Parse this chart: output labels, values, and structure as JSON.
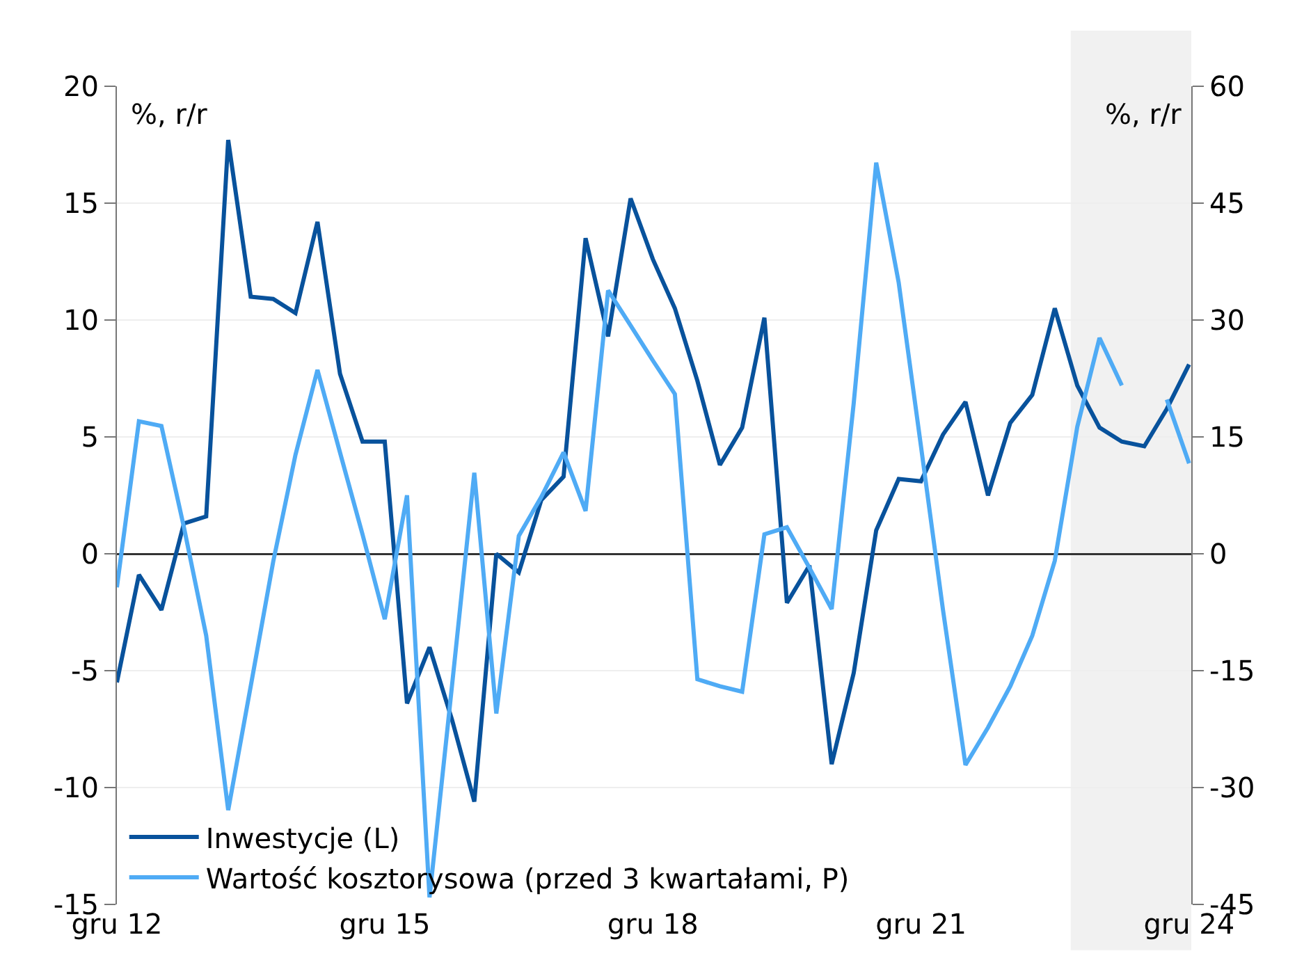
{
  "chart_data": {
    "type": "line",
    "ylabel": "%, r/r",
    "y2label": "%, r/r",
    "x": [
      "2012-12",
      "2013-03",
      "2013-06",
      "2013-09",
      "2013-12",
      "2014-03",
      "2014-06",
      "2014-09",
      "2014-12",
      "2015-03",
      "2015-06",
      "2015-09",
      "2015-12",
      "2016-03",
      "2016-06",
      "2016-09",
      "2016-12",
      "2017-03",
      "2017-06",
      "2017-09",
      "2017-12",
      "2018-03",
      "2018-06",
      "2018-09",
      "2018-12",
      "2019-03",
      "2019-06",
      "2019-09",
      "2019-12",
      "2020-03",
      "2020-06",
      "2020-09",
      "2020-12",
      "2021-03",
      "2021-06",
      "2021-09",
      "2021-12",
      "2022-03",
      "2022-06",
      "2022-09",
      "2022-12",
      "2023-03",
      "2023-06",
      "2023-09",
      "2023-12",
      "2024-03",
      "2024-06",
      "2024-09",
      "2024-12"
    ],
    "series": [
      {
        "name": "Inwestycje (L)",
        "color": "#08529c",
        "values": [
          -5.5,
          -0.9,
          -2.4,
          1.3,
          1.6,
          17.7,
          11.0,
          10.9,
          10.3,
          14.2,
          7.7,
          4.8,
          4.8,
          -6.4,
          -4.0,
          -7.1,
          -10.6,
          0,
          -0.8,
          2.3,
          3.3,
          13.5,
          9.3,
          15.2,
          12.6,
          10.5,
          7.4,
          3.8,
          5.4,
          10.1,
          -2.1,
          -0.5,
          -9.0,
          -5.1,
          1.0,
          3.2,
          3.1,
          5.1,
          6.5,
          2.5,
          5.6,
          6.8,
          10.5,
          7.2,
          5.4,
          4.8,
          4.6,
          6.2,
          8.1
        ]
      },
      {
        "name": "Wartość kosztorysowa (przed 3 kwartałami, P)",
        "color": "#4fabf5",
        "axis": "y2",
        "values": [
          -4.3,
          17.0,
          16.4,
          3.4,
          -10.5,
          -32.9,
          -17,
          -1,
          12.7,
          23.6,
          13.0,
          2.5,
          -8.4,
          7.5,
          -44.1,
          -16.9,
          10.4,
          -20.5,
          2.3,
          7.3,
          13.0,
          5.5,
          33.8,
          29.3,
          24.8,
          20.5,
          -16.1,
          -17.0,
          -17.7,
          2.5,
          3.4,
          -1.8,
          -7.1,
          19.3,
          50.2,
          34.8,
          13.8,
          -7.2,
          -27.1,
          -22.3,
          -17.0,
          -10.5,
          -0.9,
          16.3,
          27.7,
          21.6,
          null,
          19.8,
          11.6
        ]
      }
    ],
    "xlim": [
      "2012-12",
      "2024-12-10"
    ],
    "xticks": [
      {
        "value": "2012-12",
        "label": "gru 12"
      },
      {
        "value": "2015-12",
        "label": "gru 15"
      },
      {
        "value": "2018-12",
        "label": "gru 18"
      },
      {
        "value": "2021-12",
        "label": "gru 21"
      },
      {
        "value": "2024-12",
        "label": "gru 24"
      }
    ],
    "ylim": [
      -15,
      20
    ],
    "yticks": [
      -15,
      -10,
      -5,
      0,
      5,
      10,
      15,
      20
    ],
    "y2lim": [
      -45,
      60
    ],
    "y2ticks": [
      -45,
      -30,
      -15,
      0,
      15,
      30,
      45,
      60
    ],
    "bands": [
      {
        "axis": "x",
        "from": "2023-08-05",
        "to": "2024-12-10",
        "color": "#f1f1f1"
      }
    ],
    "grid": "y",
    "legend": "bottom left",
    "line_style": "solid",
    "marker": "none"
  }
}
